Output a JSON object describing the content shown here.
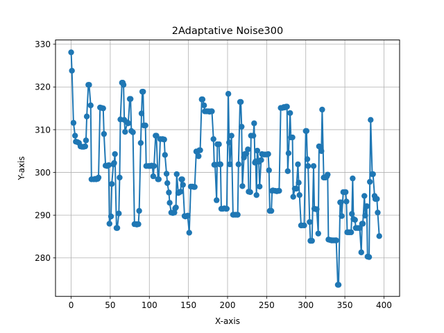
{
  "chart_data": {
    "type": "line",
    "title": "2Adaptative Noise300",
    "xlabel": "X-axis",
    "ylabel": "Y-axis",
    "xlim": [
      -20,
      420
    ],
    "ylim": [
      271,
      331
    ],
    "x_ticks": [
      0,
      50,
      100,
      150,
      200,
      250,
      300,
      350,
      400
    ],
    "y_ticks": [
      280,
      290,
      300,
      310,
      320,
      330
    ],
    "grid": true,
    "marker": "circle",
    "color": "#1f77b4",
    "series": [
      {
        "points": [
          [
            0,
            328.1
          ],
          [
            1,
            323.8
          ],
          [
            3,
            311.6
          ],
          [
            5,
            308.6
          ],
          [
            6,
            307.2
          ],
          [
            8,
            307.1
          ],
          [
            10,
            306.9
          ],
          [
            12,
            306.1
          ],
          [
            14,
            306.0
          ],
          [
            16,
            306.0
          ],
          [
            18,
            306.1
          ],
          [
            19,
            307.5
          ],
          [
            20,
            313.1
          ],
          [
            22,
            320.5
          ],
          [
            23,
            320.5
          ],
          [
            25,
            315.7
          ],
          [
            26,
            298.4
          ],
          [
            29,
            298.4
          ],
          [
            31,
            298.5
          ],
          [
            32,
            298.4
          ],
          [
            34,
            298.5
          ],
          [
            35,
            298.8
          ],
          [
            37,
            315.2
          ],
          [
            39,
            315.1
          ],
          [
            41,
            315.0
          ],
          [
            42,
            309.0
          ],
          [
            44,
            301.6
          ],
          [
            46,
            301.5
          ],
          [
            48,
            301.7
          ],
          [
            49,
            288.0
          ],
          [
            51,
            289.7
          ],
          [
            52,
            297.3
          ],
          [
            54,
            301.9
          ],
          [
            55,
            302.2
          ],
          [
            56,
            304.3
          ],
          [
            58,
            287.0
          ],
          [
            59,
            287.0
          ],
          [
            61,
            290.4
          ],
          [
            62,
            298.8
          ],
          [
            63,
            312.4
          ],
          [
            65,
            321.0
          ],
          [
            66,
            321.0
          ],
          [
            67,
            320.5
          ],
          [
            68,
            312.3
          ],
          [
            69,
            309.5
          ],
          [
            72,
            311.7
          ],
          [
            73,
            311.5
          ],
          [
            75,
            317.2
          ],
          [
            76,
            317.2
          ],
          [
            77,
            309.7
          ],
          [
            79,
            309.4
          ],
          [
            81,
            287.9
          ],
          [
            83,
            287.9
          ],
          [
            84,
            287.8
          ],
          [
            86,
            287.9
          ],
          [
            87,
            291.0
          ],
          [
            89,
            306.9
          ],
          [
            90,
            313.8
          ],
          [
            91,
            318.9
          ],
          [
            92,
            318.9
          ],
          [
            93,
            311.0
          ],
          [
            95,
            311.0
          ],
          [
            96,
            301.5
          ],
          [
            99,
            301.5
          ],
          [
            101,
            301.5
          ],
          [
            103,
            301.6
          ],
          [
            104,
            301.5
          ],
          [
            105,
            299.1
          ],
          [
            106,
            301.5
          ],
          [
            108,
            308.6
          ],
          [
            109,
            308.6
          ],
          [
            111,
            298.4
          ],
          [
            112,
            298.4
          ],
          [
            114,
            307.8
          ],
          [
            117,
            307.8
          ],
          [
            119,
            307.7
          ],
          [
            120,
            304.1
          ],
          [
            122,
            299.7
          ],
          [
            123,
            297.5
          ],
          [
            125,
            295.3
          ],
          [
            126,
            292.9
          ],
          [
            128,
            290.6
          ],
          [
            130,
            290.5
          ],
          [
            132,
            290.6
          ],
          [
            133,
            291.6
          ],
          [
            134,
            291.8
          ],
          [
            135,
            299.6
          ],
          [
            137,
            295.2
          ],
          [
            138,
            295.3
          ],
          [
            140,
            295.5
          ],
          [
            141,
            298.4
          ],
          [
            142,
            298.4
          ],
          [
            143,
            297.1
          ],
          [
            145,
            289.8
          ],
          [
            146,
            289.7
          ],
          [
            148,
            289.8
          ],
          [
            149,
            289.9
          ],
          [
            151,
            285.9
          ],
          [
            153,
            296.7
          ],
          [
            155,
            296.7
          ],
          [
            157,
            296.6
          ],
          [
            158,
            296.6
          ],
          [
            160,
            304.9
          ],
          [
            163,
            303.8
          ],
          [
            164,
            305.2
          ],
          [
            165,
            305.2
          ],
          [
            167,
            317.1
          ],
          [
            168,
            317.1
          ],
          [
            170,
            315.7
          ],
          [
            171,
            314.3
          ],
          [
            173,
            314.3
          ],
          [
            174,
            314.3
          ],
          [
            176,
            314.3
          ],
          [
            177,
            314.2
          ],
          [
            179,
            314.3
          ],
          [
            180,
            314.3
          ],
          [
            182,
            307.8
          ],
          [
            183,
            301.8
          ],
          [
            184,
            301.8
          ],
          [
            186,
            293.5
          ],
          [
            187,
            306.6
          ],
          [
            189,
            306.6
          ],
          [
            190,
            301.9
          ],
          [
            191,
            301.9
          ],
          [
            192,
            291.5
          ],
          [
            194,
            291.5
          ],
          [
            196,
            291.6
          ],
          [
            198,
            291.5
          ],
          [
            199,
            291.5
          ],
          [
            201,
            318.4
          ],
          [
            202,
            307.0
          ],
          [
            203,
            301.9
          ],
          [
            205,
            308.6
          ],
          [
            207,
            290.1
          ],
          [
            208,
            290.1
          ],
          [
            210,
            290.1
          ],
          [
            212,
            290.1
          ],
          [
            213,
            290.1
          ],
          [
            214,
            301.9
          ],
          [
            216,
            316.5
          ],
          [
            217,
            316.5
          ],
          [
            218,
            310.7
          ],
          [
            219,
            296.8
          ],
          [
            221,
            303.5
          ],
          [
            222,
            304.3
          ],
          [
            224,
            304.4
          ],
          [
            226,
            305.4
          ],
          [
            227,
            295.5
          ],
          [
            229,
            295.4
          ],
          [
            230,
            308.6
          ],
          [
            233,
            308.6
          ],
          [
            234,
            311.5
          ],
          [
            235,
            302.3
          ],
          [
            236,
            302.6
          ],
          [
            237,
            294.7
          ],
          [
            238,
            305.1
          ],
          [
            240,
            302.5
          ],
          [
            241,
            296.7
          ],
          [
            243,
            302.9
          ],
          [
            244,
            304.3
          ],
          [
            246,
            304.2
          ],
          [
            248,
            304.2
          ],
          [
            250,
            304.2
          ],
          [
            252,
            304.3
          ],
          [
            253,
            300.5
          ],
          [
            254,
            291.0
          ],
          [
            256,
            291.0
          ],
          [
            257,
            295.7
          ],
          [
            258,
            295.8
          ],
          [
            261,
            295.7
          ],
          [
            263,
            295.6
          ],
          [
            265,
            295.7
          ],
          [
            266,
            295.7
          ],
          [
            268,
            315.1
          ],
          [
            270,
            315.1
          ],
          [
            272,
            315.3
          ],
          [
            273,
            315.2
          ],
          [
            275,
            315.4
          ],
          [
            276,
            315.4
          ],
          [
            277,
            300.3
          ],
          [
            278,
            304.5
          ],
          [
            280,
            313.9
          ],
          [
            281,
            308.2
          ],
          [
            283,
            308.2
          ],
          [
            284,
            294.3
          ],
          [
            286,
            296.2
          ],
          [
            288,
            296.2
          ],
          [
            290,
            301.9
          ],
          [
            291,
            297.6
          ],
          [
            292,
            294.7
          ],
          [
            294,
            287.6
          ],
          [
            295,
            287.6
          ],
          [
            298,
            287.6
          ],
          [
            300,
            309.7
          ],
          [
            301,
            309.7
          ],
          [
            302,
            303.1
          ],
          [
            303,
            301.5
          ],
          [
            305,
            288.4
          ],
          [
            306,
            284.0
          ],
          [
            308,
            284.0
          ],
          [
            310,
            301.5
          ],
          [
            311,
            291.5
          ],
          [
            313,
            291.4
          ],
          [
            314,
            291.4
          ],
          [
            316,
            285.7
          ],
          [
            317,
            306.1
          ],
          [
            319,
            305.9
          ],
          [
            320,
            305.0
          ],
          [
            321,
            314.7
          ],
          [
            323,
            298.8
          ],
          [
            325,
            298.8
          ],
          [
            327,
            299.1
          ],
          [
            328,
            299.5
          ],
          [
            329,
            284.3
          ],
          [
            331,
            284.2
          ],
          [
            333,
            284.1
          ],
          [
            334,
            284.1
          ],
          [
            336,
            284.1
          ],
          [
            338,
            284.1
          ],
          [
            339,
            284.1
          ],
          [
            341,
            273.7
          ],
          [
            342,
            273.7
          ],
          [
            344,
            293.0
          ],
          [
            345,
            293.0
          ],
          [
            346,
            289.8
          ],
          [
            348,
            295.4
          ],
          [
            350,
            295.4
          ],
          [
            351,
            295.4
          ],
          [
            352,
            293.2
          ],
          [
            353,
            286.0
          ],
          [
            355,
            286.0
          ],
          [
            356,
            286.0
          ],
          [
            358,
            286.0
          ],
          [
            359,
            290.3
          ],
          [
            360,
            298.6
          ],
          [
            361,
            289.1
          ],
          [
            363,
            288.9
          ],
          [
            364,
            287.0
          ],
          [
            366,
            287.0
          ],
          [
            368,
            287.0
          ],
          [
            369,
            287.0
          ],
          [
            371,
            281.3
          ],
          [
            372,
            288.0
          ],
          [
            373,
            288.0
          ],
          [
            375,
            294.5
          ],
          [
            376,
            289.9
          ],
          [
            378,
            292.1
          ],
          [
            379,
            280.3
          ],
          [
            381,
            280.2
          ],
          [
            382,
            297.8
          ],
          [
            383,
            312.3
          ],
          [
            385,
            299.6
          ],
          [
            386,
            299.6
          ],
          [
            388,
            294.5
          ],
          [
            389,
            293.8
          ],
          [
            391,
            293.8
          ],
          [
            392,
            290.6
          ],
          [
            394,
            285.1
          ]
        ]
      }
    ]
  }
}
